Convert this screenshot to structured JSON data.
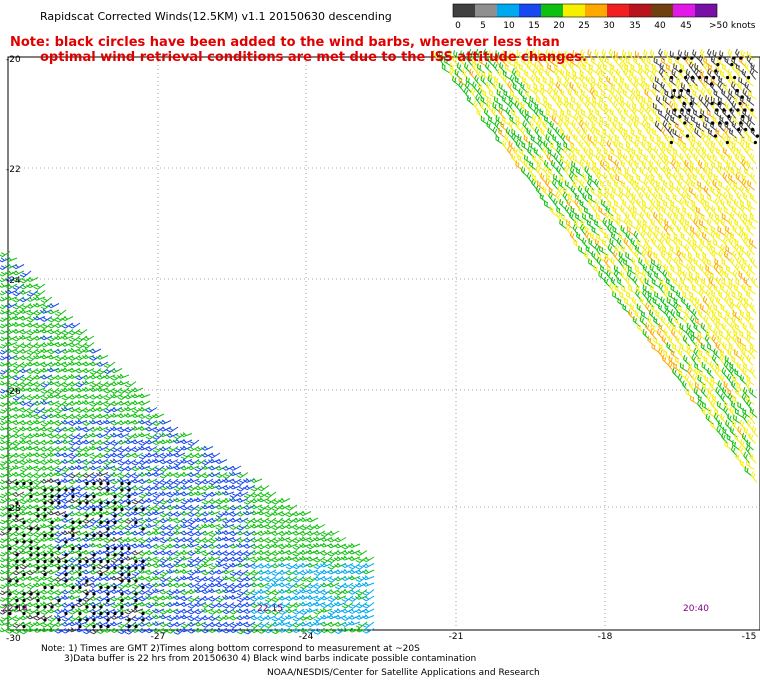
{
  "title": "Rapidscat Corrected Winds(12.5KM) v1.1 20150630 descending",
  "note": {
    "line1": "Note: black circles have been added to the wind barbs, wherever less than",
    "line2": "optimal wind retrieval conditions are met due to the ISS attitude changes."
  },
  "legend": {
    "unit_label": ">50 knots",
    "tick_labels": [
      "0",
      "5",
      "10",
      "15",
      "20",
      "25",
      "30",
      "35",
      "40",
      "45"
    ],
    "colors": [
      "#404040",
      "#8f8f8f",
      "#00a8f0",
      "#1848f0",
      "#10c010",
      "#f6f000",
      "#ffa800",
      "#f02020",
      "#b8141e",
      "#704010",
      "#e018e8",
      "#7810a8"
    ]
  },
  "map": {
    "lon_labels": [
      "-27",
      "-24",
      "-21",
      "-18",
      "-15"
    ],
    "lat_labels": [
      "-20",
      "-22",
      "-24",
      "-26",
      "-28",
      "-30"
    ],
    "time_labels": [
      "22:14",
      "22:15",
      "20:40"
    ]
  },
  "footer": {
    "line1": "Note: 1) Times are GMT 2)Times along bottom correspond to measurement at ~20S",
    "line2": "3)Data buffer is 22 hrs from 20150630 4) Black wind barbs indicate possible contamination",
    "line3": "NOAA/NESDIS/Center for Satellite Applications and Research"
  },
  "colors": {
    "note_red": "#e00000",
    "time_purple": "#800080",
    "grid": "#a0a0a0"
  }
}
